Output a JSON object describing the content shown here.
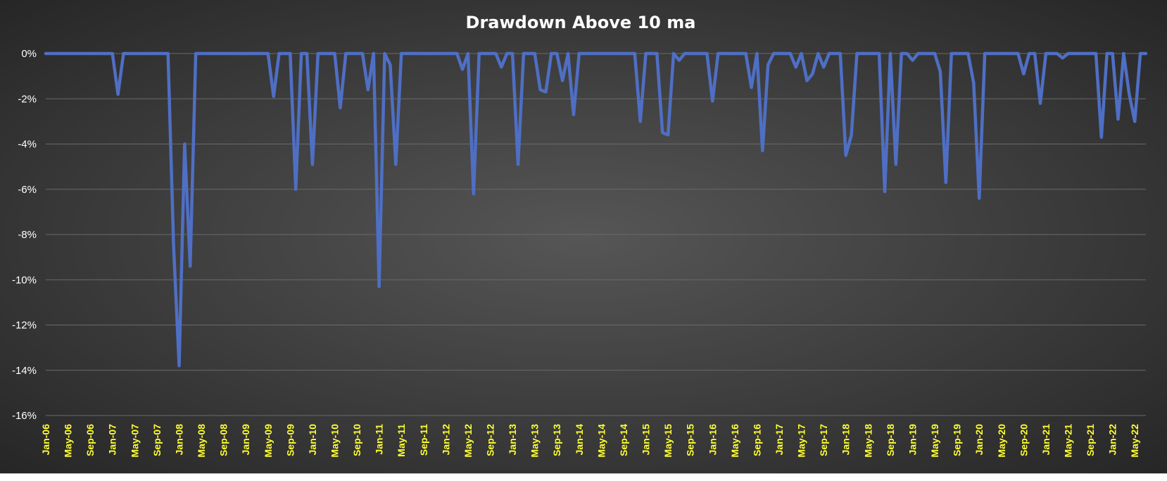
{
  "chart_data": {
    "type": "line",
    "title": "Drawdown Above 10 ma",
    "xlabel": "",
    "ylabel": "",
    "ylim": [
      -0.16,
      0
    ],
    "y_ticks": [
      0,
      -0.02,
      -0.04,
      -0.06,
      -0.08,
      -0.1,
      -0.12,
      -0.14,
      -0.16
    ],
    "y_tick_labels": [
      "0%",
      "-2%",
      "-4%",
      "-6%",
      "-8%",
      "-10%",
      "-12%",
      "-14%",
      "-16%"
    ],
    "x_tick_labels": [
      "Jan-06",
      "May-06",
      "Sep-06",
      "Jan-07",
      "May-07",
      "Sep-07",
      "Jan-08",
      "May-08",
      "Sep-08",
      "Jan-09",
      "May-09",
      "Sep-09",
      "Jan-10",
      "May-10",
      "Sep-10",
      "Jan-11",
      "May-11",
      "Sep-11",
      "Jan-12",
      "May-12",
      "Sep-12",
      "Jan-13",
      "May-13",
      "Sep-13",
      "Jan-14",
      "May-14",
      "Sep-14",
      "Jan-15",
      "May-15",
      "Sep-15",
      "Jan-16",
      "May-16",
      "Sep-16",
      "Jan-17",
      "May-17",
      "Sep-17",
      "Jan-18",
      "May-18",
      "Sep-18",
      "Jan-19",
      "May-19",
      "Sep-19",
      "Jan-20",
      "May-20",
      "Sep-20",
      "Jan-21",
      "May-21",
      "Sep-21",
      "Jan-22",
      "May-22"
    ],
    "grid": true,
    "series": [
      {
        "color": "#4f6fc4",
        "dips": [
          {
            "x": "Feb-07",
            "y": -0.018
          },
          {
            "x": "Dec-07",
            "y": -0.085
          },
          {
            "x": "Jan-08",
            "y": -0.138
          },
          {
            "x": "Feb-08",
            "y": -0.04
          },
          {
            "x": "Mar-08",
            "y": -0.094
          },
          {
            "x": "Jun-09",
            "y": -0.019
          },
          {
            "x": "Oct-09",
            "y": -0.06
          },
          {
            "x": "Jan-10",
            "y": -0.049
          },
          {
            "x": "Jun-10",
            "y": -0.024
          },
          {
            "x": "Nov-10",
            "y": -0.016
          },
          {
            "x": "Jan-11",
            "y": -0.103
          },
          {
            "x": "Mar-11",
            "y": -0.005
          },
          {
            "x": "Apr-11",
            "y": -0.049
          },
          {
            "x": "Apr-12",
            "y": -0.007
          },
          {
            "x": "Jun-12",
            "y": -0.062
          },
          {
            "x": "Nov-12",
            "y": -0.006
          },
          {
            "x": "Feb-13",
            "y": -0.049
          },
          {
            "x": "Jun-13",
            "y": -0.016
          },
          {
            "x": "Jul-13",
            "y": -0.017
          },
          {
            "x": "Oct-13",
            "y": -0.012
          },
          {
            "x": "Dec-13",
            "y": -0.027
          },
          {
            "x": "Dec-14",
            "y": -0.03
          },
          {
            "x": "Apr-15",
            "y": -0.035
          },
          {
            "x": "May-15",
            "y": -0.036
          },
          {
            "x": "Jul-15",
            "y": -0.003
          },
          {
            "x": "Jan-16",
            "y": -0.021
          },
          {
            "x": "Aug-16",
            "y": -0.015
          },
          {
            "x": "Oct-16",
            "y": -0.043
          },
          {
            "x": "Nov-16",
            "y": -0.005
          },
          {
            "x": "Apr-17",
            "y": -0.006
          },
          {
            "x": "Jun-17",
            "y": -0.012
          },
          {
            "x": "Jul-17",
            "y": -0.009
          },
          {
            "x": "Sep-17",
            "y": -0.006
          },
          {
            "x": "Jan-18",
            "y": -0.045
          },
          {
            "x": "Feb-18",
            "y": -0.036
          },
          {
            "x": "Aug-18",
            "y": -0.061
          },
          {
            "x": "Oct-18",
            "y": -0.049
          },
          {
            "x": "Jan-19",
            "y": -0.003
          },
          {
            "x": "Jun-19",
            "y": -0.008
          },
          {
            "x": "Jul-19",
            "y": -0.057
          },
          {
            "x": "Dec-19",
            "y": -0.013
          },
          {
            "x": "Jan-20",
            "y": -0.064
          },
          {
            "x": "Sep-20",
            "y": -0.009
          },
          {
            "x": "Dec-20",
            "y": -0.022
          },
          {
            "x": "Apr-21",
            "y": -0.002
          },
          {
            "x": "Nov-21",
            "y": -0.037
          },
          {
            "x": "Feb-22",
            "y": -0.029
          },
          {
            "x": "Apr-22",
            "y": -0.018
          },
          {
            "x": "May-22",
            "y": -0.03
          }
        ],
        "start": "Jan-06",
        "end": "Jul-22"
      }
    ]
  }
}
